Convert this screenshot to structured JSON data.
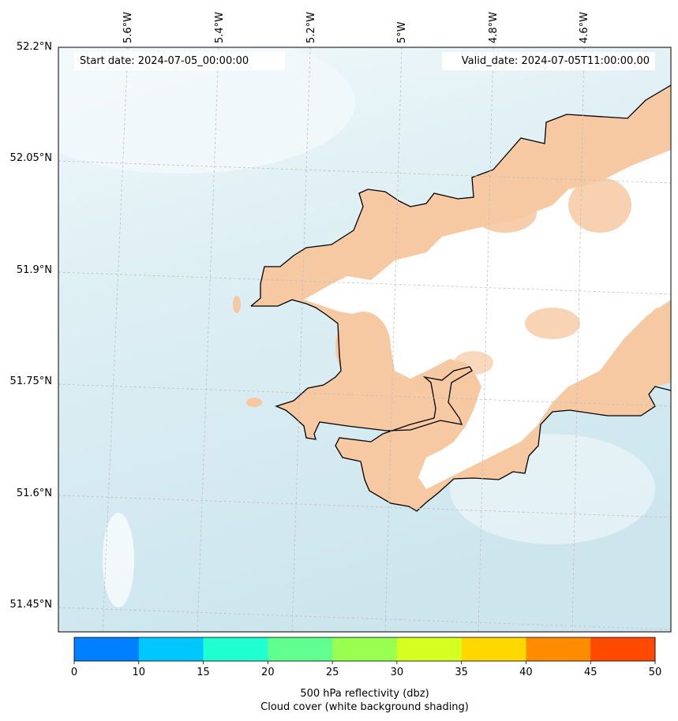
{
  "map": {
    "start_date_text": "Start date: 2024-07-05_00:00:00",
    "valid_date_text": "Valid_date: 2024-07-05T11:00:00.00",
    "longitude_labels": [
      "5.6°W",
      "5.4°W",
      "5.2°W",
      "5°W",
      "4.8°W",
      "4.6°W"
    ],
    "latitude_labels": [
      "52.2°N",
      "52.05°N",
      "51.9°N",
      "51.75°N",
      "51.6°N",
      "51.45°N"
    ],
    "colors": {
      "sea_light": "#eaf5f8",
      "sea_mid": "#d9eef4",
      "sea_deep": "#cbe5ee",
      "land_cloud": "#f6c9a2",
      "land_clear": "#ffffff",
      "coastline": "#000000",
      "gridline": "#bbbbbb"
    }
  },
  "colorbar": {
    "title_line1": "500 hPa reflectivity (dbz)",
    "title_line2": "Cloud cover (white background shading)",
    "ticks": [
      "0",
      "10",
      "15",
      "20",
      "25",
      "30",
      "35",
      "40",
      "45",
      "50"
    ],
    "segments": [
      {
        "from": 0,
        "to": 10,
        "color": "#0080ff"
      },
      {
        "from": 10,
        "to": 15,
        "color": "#00c8ff"
      },
      {
        "from": 15,
        "to": 20,
        "color": "#20ffd0"
      },
      {
        "from": 20,
        "to": 25,
        "color": "#60ff90"
      },
      {
        "from": 25,
        "to": 30,
        "color": "#98ff50"
      },
      {
        "from": 30,
        "to": 35,
        "color": "#d4ff20"
      },
      {
        "from": 35,
        "to": 40,
        "color": "#ffd800"
      },
      {
        "from": 40,
        "to": 45,
        "color": "#ff8c00"
      },
      {
        "from": 45,
        "to": 50,
        "color": "#ff4a00"
      }
    ]
  }
}
